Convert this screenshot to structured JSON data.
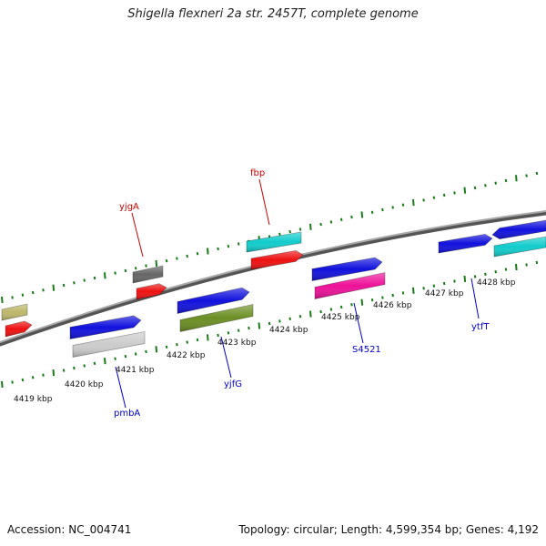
{
  "header": {
    "title": "Shigella flexneri 2a str. 2457T, complete genome"
  },
  "footer": {
    "accession": "Accession: NC_004741",
    "info": "Topology: circular; Length: 4,599,354 bp; Genes: 4,192"
  },
  "scale_labels": [
    "4419 kbp",
    "4420 kbp",
    "4421 kbp",
    "4422 kbp",
    "4423 kbp",
    "4424 kbp",
    "4425 kbp",
    "4426 kbp",
    "4427 kbp",
    "4428 kbp"
  ],
  "gene_labels": {
    "forward": [
      "yjgA",
      "fbp"
    ],
    "reverse": [
      "pmbA",
      "yjfG",
      "S4521",
      "ytfT"
    ]
  },
  "colors": {
    "forward_label": "#cc0000",
    "reverse_label": "#0000cc",
    "tick": "#1a7a1a",
    "backbone": "#888888",
    "blue": "#1111dd",
    "red": "#ee1111",
    "cyan": "#11cccc",
    "magenta": "#ee1199",
    "olive": "#6b8e23",
    "gray": "#cccccc",
    "dark_gray": "#666666",
    "khaki": "#bdb76b"
  }
}
